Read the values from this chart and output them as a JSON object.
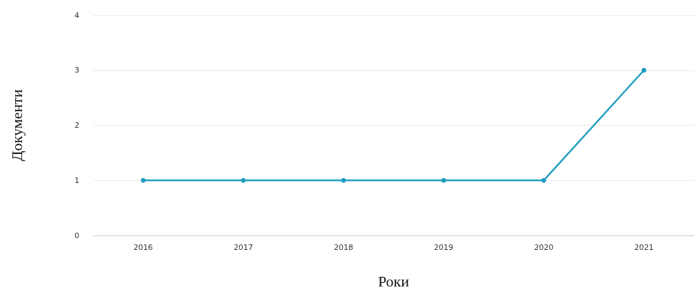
{
  "chart_data": {
    "type": "line",
    "xlabel": "Роки",
    "ylabel": "Документи",
    "categories": [
      "2016",
      "2017",
      "2018",
      "2019",
      "2020",
      "2021"
    ],
    "series": [
      {
        "color": "#1f9dbf",
        "values": [
          1,
          1,
          1,
          1,
          1,
          3
        ]
      }
    ],
    "ylim": [
      0,
      4
    ],
    "yticks": [
      0,
      1,
      2,
      3,
      4
    ],
    "grid": "y",
    "marker": "circle",
    "line_style": "solid"
  }
}
